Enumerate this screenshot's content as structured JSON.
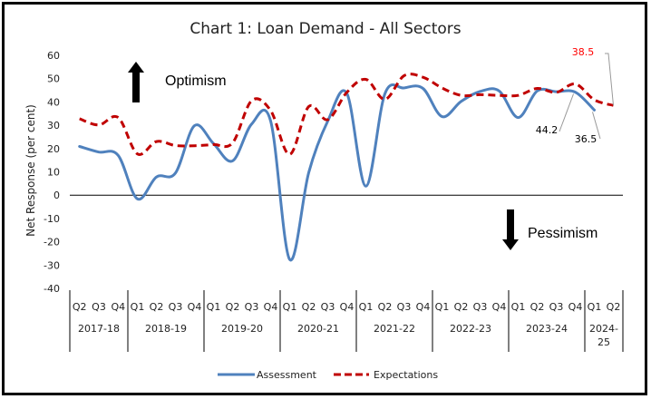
{
  "chart_data": {
    "type": "line",
    "title": "Chart 1: Loan Demand - All Sectors",
    "ylabel": "Net Response (per cent)",
    "xlabel": "",
    "ylim": [
      -40,
      60
    ],
    "yticks": [
      60,
      50,
      40,
      30,
      20,
      10,
      0,
      -10,
      -20,
      -30,
      -40
    ],
    "grid": false,
    "legend_position": "bottom",
    "categories": [
      "Q2",
      "Q3",
      "Q4",
      "Q1",
      "Q2",
      "Q3",
      "Q4",
      "Q1",
      "Q2",
      "Q3",
      "Q4",
      "Q1",
      "Q2",
      "Q3",
      "Q4",
      "Q1",
      "Q2",
      "Q3",
      "Q4",
      "Q1",
      "Q2",
      "Q3",
      "Q4",
      "Q1",
      "Q2",
      "Q3",
      "Q4",
      "Q1",
      "Q2"
    ],
    "year_groups": [
      {
        "label": "2017-18",
        "count": 3
      },
      {
        "label": "2018-19",
        "count": 4
      },
      {
        "label": "2019-20",
        "count": 4
      },
      {
        "label": "2020-21",
        "count": 4
      },
      {
        "label": "2021-22",
        "count": 4
      },
      {
        "label": "2022-23",
        "count": 4
      },
      {
        "label": "2023-24",
        "count": 4
      },
      {
        "label": "2024-\n25",
        "count": 2
      }
    ],
    "series": [
      {
        "name": "Assessment",
        "color": "#4F81BD",
        "style": "solid",
        "values": [
          20.9,
          18.5,
          17.1,
          -1.6,
          7.8,
          9.5,
          29.8,
          22.1,
          14.7,
          30.5,
          31.8,
          -27.6,
          9.7,
          31.8,
          43.7,
          3.9,
          43.5,
          46.0,
          45.8,
          33.7,
          40.2,
          44.5,
          44.7,
          33.3,
          44.7,
          44.4,
          44.2,
          36.5
        ]
      },
      {
        "name": "Expectations",
        "color": "#C00000",
        "style": "dashed",
        "values": [
          32.8,
          30.1,
          33.3,
          17.7,
          23.0,
          21.3,
          21.2,
          21.7,
          22.4,
          40.5,
          36.3,
          17.5,
          38.0,
          32.4,
          44.1,
          49.7,
          41.1,
          51.2,
          50.6,
          46.0,
          42.8,
          43.1,
          42.8,
          42.8,
          45.8,
          44.1,
          47.7,
          40.9,
          38.5
        ]
      }
    ],
    "data_labels": [
      {
        "series": "Assessment",
        "index": 26,
        "text": "44.2",
        "color": "#000000"
      },
      {
        "series": "Assessment",
        "index": 27,
        "text": "36.5",
        "color": "#000000"
      },
      {
        "series": "Expectations",
        "index": 28,
        "text": "38.5",
        "color": "#FF0000"
      }
    ],
    "annotations": [
      {
        "text": "Optimism",
        "arrow": "up"
      },
      {
        "text": "Pessimism",
        "arrow": "down"
      }
    ]
  }
}
